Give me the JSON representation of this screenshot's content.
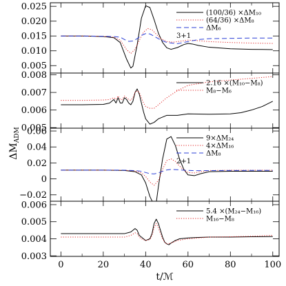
{
  "chart_data": [
    {
      "type": "line",
      "xlim": [
        -5,
        103
      ],
      "ylim": [
        0.0025,
        0.0262
      ],
      "yticks": [
        0.005,
        0.01,
        0.015,
        0.02,
        0.025
      ],
      "ytick_labels": [
        "0.005",
        "0.010",
        "0.015",
        "0.020",
        "0.025"
      ],
      "legend_position": "top-right",
      "annotation": "3+1",
      "series": [
        {
          "name": "(100/36) ×ΔM₁₀",
          "style": "solid",
          "color": "#000000",
          "x": [
            0,
            10,
            20,
            25,
            28,
            31,
            33,
            34,
            36,
            38,
            40,
            42,
            44,
            46,
            48,
            50,
            52,
            55,
            58,
            60,
            62,
            65,
            70,
            80,
            90,
            100
          ],
          "y": [
            0.015,
            0.015,
            0.0148,
            0.0144,
            0.0128,
            0.0072,
            0.0042,
            0.0048,
            0.012,
            0.021,
            0.0252,
            0.0246,
            0.0205,
            0.016,
            0.0128,
            0.011,
            0.0105,
            0.0111,
            0.0121,
            0.0125,
            0.0123,
            0.0118,
            0.0112,
            0.0107,
            0.0105,
            0.0104
          ]
        },
        {
          "name": "(64/36) ×ΔM₈",
          "style": "dotted",
          "color": "#e02020",
          "x": [
            0,
            10,
            20,
            25,
            28,
            31,
            33,
            35,
            37,
            39,
            41,
            43,
            45,
            47,
            50,
            53,
            56,
            60,
            65,
            70,
            80,
            90,
            100
          ],
          "y": [
            0.015,
            0.015,
            0.0149,
            0.0146,
            0.0136,
            0.0104,
            0.0091,
            0.0105,
            0.0135,
            0.0163,
            0.0175,
            0.0171,
            0.0156,
            0.0142,
            0.0131,
            0.0129,
            0.0132,
            0.0136,
            0.0134,
            0.0131,
            0.0128,
            0.0126,
            0.0125
          ]
        },
        {
          "name": "ΔM₆",
          "style": "dashed",
          "color": "#2b3fd6",
          "x": [
            0,
            10,
            20,
            25,
            28,
            30,
            32,
            34,
            36,
            38,
            40,
            42,
            44,
            47,
            50,
            55,
            60,
            65,
            70,
            80,
            90,
            100
          ],
          "y": [
            0.015,
            0.015,
            0.0149,
            0.0148,
            0.0146,
            0.0138,
            0.0132,
            0.0133,
            0.0141,
            0.0152,
            0.0158,
            0.0157,
            0.0149,
            0.0137,
            0.0128,
            0.0124,
            0.0131,
            0.0138,
            0.0141,
            0.0142,
            0.0143,
            0.0143
          ]
        }
      ]
    },
    {
      "type": "line",
      "xlim": [
        -5,
        103
      ],
      "ylim": [
        0.00497,
        0.0081
      ],
      "yticks": [
        0.005,
        0.006,
        0.007,
        0.008
      ],
      "ytick_labels": [
        "0.005",
        "0.006",
        "0.007",
        "0.008"
      ],
      "legend_position": "top-right",
      "series": [
        {
          "name": "2.16 ×(M₁₀−M₈)",
          "style": "solid",
          "color": "#000000",
          "x": [
            0,
            10,
            20,
            23,
            25,
            26,
            27,
            28,
            29,
            30,
            31,
            32,
            33,
            34,
            35,
            36,
            37,
            38,
            39,
            40,
            42,
            44,
            46,
            50,
            55,
            60,
            70,
            80,
            85,
            90,
            95,
            100
          ],
          "y": [
            0.0063,
            0.0063,
            0.00632,
            0.0064,
            0.0066,
            0.0064,
            0.0067,
            0.0064,
            0.0064,
            0.0067,
            0.0066,
            0.0064,
            0.0063,
            0.0065,
            0.007,
            0.0072,
            0.0069,
            0.0064,
            0.0059,
            0.0055,
            0.0052,
            0.0053,
            0.0055,
            0.0057,
            0.0057,
            0.00578,
            0.00576,
            0.00578,
            0.00585,
            0.006,
            0.0062,
            0.0065
          ]
        },
        {
          "name": "M₈−M₆",
          "style": "dotted",
          "color": "#e02020",
          "x": [
            0,
            10,
            20,
            23,
            25,
            26,
            27,
            28,
            29,
            30,
            31,
            32,
            33,
            34,
            35,
            36,
            37,
            38,
            39,
            40,
            42,
            44,
            46,
            50,
            55,
            60,
            70,
            80,
            90,
            100
          ],
          "y": [
            0.00655,
            0.00655,
            0.00657,
            0.0066,
            0.0067,
            0.0066,
            0.0068,
            0.0066,
            0.0066,
            0.0068,
            0.0067,
            0.0066,
            0.00655,
            0.0067,
            0.007,
            0.0071,
            0.007,
            0.0067,
            0.0064,
            0.0062,
            0.0061,
            0.0061,
            0.0063,
            0.0067,
            0.0071,
            0.0074,
            0.0076,
            0.0077,
            0.0078,
            0.0079
          ]
        }
      ]
    },
    {
      "type": "line",
      "xlim": [
        -5,
        103
      ],
      "ylim": [
        -0.028,
        0.0635
      ],
      "yticks": [
        -0.02,
        0,
        0.02,
        0.04,
        0.06
      ],
      "ytick_labels": [
        "−0.02",
        "0",
        "0.02",
        "0.04",
        "0.06"
      ],
      "legend_position": "top-right",
      "annotation": "2+1",
      "series": [
        {
          "name": "9×ΔM₂₄",
          "style": "solid",
          "color": "#000000",
          "x": [
            0,
            10,
            20,
            30,
            35,
            38,
            40,
            42,
            44,
            45,
            46,
            48,
            50,
            52,
            54,
            56,
            58,
            60,
            63,
            66,
            70,
            80,
            90,
            100
          ],
          "y": [
            0.011,
            0.011,
            0.011,
            0.0105,
            0.009,
            0.005,
            -0.005,
            -0.022,
            -0.033,
            -0.03,
            -0.01,
            0.025,
            0.05,
            0.053,
            0.042,
            0.025,
            0.012,
            0.005,
            0.004,
            0.0065,
            0.009,
            0.0095,
            0.0095,
            0.0095
          ]
        },
        {
          "name": "4×ΔM₁₆",
          "style": "dotted",
          "color": "#e02020",
          "x": [
            0,
            10,
            20,
            30,
            35,
            38,
            40,
            42,
            44,
            46,
            48,
            50,
            52,
            54,
            56,
            58,
            60,
            63,
            66,
            70,
            80,
            90,
            100
          ],
          "y": [
            0.011,
            0.011,
            0.011,
            0.0108,
            0.0098,
            0.0075,
            0.003,
            -0.004,
            -0.008,
            -0.002,
            0.012,
            0.023,
            0.025,
            0.022,
            0.016,
            0.011,
            0.008,
            0.0075,
            0.009,
            0.0105,
            0.0108,
            0.0108,
            0.0108
          ]
        },
        {
          "name": "ΔM₈",
          "style": "dashed",
          "color": "#2b3fd6",
          "x": [
            0,
            10,
            20,
            30,
            35,
            38,
            40,
            42,
            44,
            46,
            48,
            50,
            52,
            55,
            58,
            62,
            66,
            70,
            80,
            90,
            100
          ],
          "y": [
            0.011,
            0.011,
            0.011,
            0.0109,
            0.0104,
            0.0095,
            0.008,
            0.0065,
            0.0062,
            0.0075,
            0.0095,
            0.0112,
            0.0118,
            0.0115,
            0.0109,
            0.0104,
            0.0103,
            0.0104,
            0.0105,
            0.0106,
            0.0106
          ]
        }
      ]
    },
    {
      "type": "line",
      "xlim": [
        -5,
        103
      ],
      "ylim": [
        0.00297,
        0.0062
      ],
      "yticks": [
        0.003,
        0.004,
        0.005,
        0.006
      ],
      "ytick_labels": [
        "0.003",
        "0.004",
        "0.005",
        "0.006"
      ],
      "xticks": [
        0,
        20,
        40,
        60,
        80,
        100
      ],
      "xtick_labels": [
        "0",
        "20",
        "40",
        "60",
        "80",
        "100"
      ],
      "xlabel": "t/ℳ",
      "ylabel": "ΔM",
      "ylabel_sub": "ADM",
      "legend_position": "top-right",
      "series": [
        {
          "name": "5.4 ×(M₂₄−M₁₆)",
          "style": "solid",
          "color": "#000000",
          "x": [
            0,
            10,
            20,
            25,
            30,
            33,
            35,
            36,
            37,
            38,
            40,
            42,
            43,
            44,
            45,
            46,
            47,
            48,
            49,
            50,
            51,
            52,
            54,
            56,
            60,
            65,
            70,
            80,
            90,
            100
          ],
          "y": [
            0.0043,
            0.0043,
            0.0043,
            0.0043,
            0.0043,
            0.0044,
            0.0046,
            0.0045,
            0.0042,
            0.0041,
            0.0039,
            0.004,
            0.0043,
            0.0049,
            0.00515,
            0.0049,
            0.0045,
            0.0041,
            0.0038,
            0.0037,
            0.00365,
            0.00375,
            0.0039,
            0.004,
            0.00405,
            0.00408,
            0.0041,
            0.0041,
            0.00412,
            0.00413
          ]
        },
        {
          "name": "M₁₆−M₈",
          "style": "dotted",
          "color": "#e02020",
          "x": [
            0,
            10,
            20,
            25,
            30,
            33,
            35,
            36,
            37,
            38,
            40,
            42,
            43,
            44,
            45,
            46,
            47,
            48,
            49,
            50,
            52,
            55,
            60,
            65,
            70,
            80,
            90,
            100
          ],
          "y": [
            0.0041,
            0.0041,
            0.0041,
            0.0041,
            0.0041,
            0.0042,
            0.00435,
            0.0043,
            0.0041,
            0.004,
            0.0039,
            0.00395,
            0.0042,
            0.00465,
            0.0049,
            0.00465,
            0.0043,
            0.004,
            0.0038,
            0.0037,
            0.00375,
            0.0039,
            0.004,
            0.00405,
            0.0041,
            0.00412,
            0.00415,
            0.0042
          ]
        }
      ]
    }
  ]
}
